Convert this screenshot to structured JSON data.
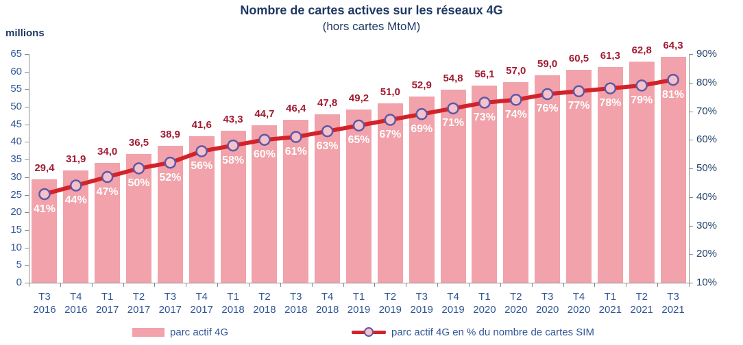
{
  "header": {
    "title": "Nombre de cartes actives sur les réseaux 4G",
    "subtitle": "(hors cartes MtoM)",
    "unit_label": "millions"
  },
  "legend": {
    "bar_label": "parc actif 4G",
    "line_label": "parc actif 4G en % du nombre de cartes SIM"
  },
  "colors": {
    "title": "#1F3864",
    "axis_text": "#2F5597",
    "bar_fill": "#F1A2AA",
    "bar_value_text": "#A11C33",
    "line": "#D2232A",
    "marker_fill": "#F3C2CB",
    "marker_stroke": "#6057A6",
    "pct_text": "#FFFFFF",
    "axis_line": "#8a8a8a"
  },
  "chart_data": {
    "type": "combo",
    "title": "Nombre de cartes actives sur les réseaux 4G",
    "subtitle": "(hors cartes MtoM)",
    "xlabel": "",
    "ylabel_left": "millions",
    "ylabel_right": "",
    "grid": false,
    "legend_position": "bottom",
    "categories": [
      [
        "T3",
        "2016"
      ],
      [
        "T4",
        "2016"
      ],
      [
        "T1",
        "2017"
      ],
      [
        "T2",
        "2017"
      ],
      [
        "T3",
        "2017"
      ],
      [
        "T4",
        "2017"
      ],
      [
        "T1",
        "2018"
      ],
      [
        "T2",
        "2018"
      ],
      [
        "T3",
        "2018"
      ],
      [
        "T4",
        "2018"
      ],
      [
        "T1",
        "2019"
      ],
      [
        "T2",
        "2019"
      ],
      [
        "T3",
        "2019"
      ],
      [
        "T4",
        "2019"
      ],
      [
        "T1",
        "2020"
      ],
      [
        "T2",
        "2020"
      ],
      [
        "T3",
        "2020"
      ],
      [
        "T4",
        "2020"
      ],
      [
        "T1",
        "2021"
      ],
      [
        "T2",
        "2021"
      ],
      [
        "T3",
        "2021"
      ]
    ],
    "series": [
      {
        "name": "parc actif 4G",
        "type": "bar",
        "axis": "left",
        "values": [
          29.4,
          31.9,
          34.0,
          36.5,
          38.9,
          41.6,
          43.3,
          44.7,
          46.4,
          47.8,
          49.2,
          51.0,
          52.9,
          54.8,
          56.1,
          57.0,
          59.0,
          60.5,
          61.3,
          62.8,
          64.3
        ],
        "labels": [
          "29,4",
          "31,9",
          "34,0",
          "36,5",
          "38,9",
          "41,6",
          "43,3",
          "44,7",
          "46,4",
          "47,8",
          "49,2",
          "51,0",
          "52,9",
          "54,8",
          "56,1",
          "57,0",
          "59,0",
          "60,5",
          "61,3",
          "62,8",
          "64,3"
        ]
      },
      {
        "name": "parc actif 4G en % du nombre de cartes SIM",
        "type": "line",
        "axis": "right",
        "values": [
          41,
          44,
          47,
          50,
          52,
          56,
          58,
          60,
          61,
          63,
          65,
          67,
          69,
          71,
          73,
          74,
          76,
          77,
          78,
          79,
          81
        ],
        "labels": [
          "41%",
          "44%",
          "47%",
          "50%",
          "52%",
          "56%",
          "58%",
          "60%",
          "61%",
          "63%",
          "65%",
          "67%",
          "69%",
          "71%",
          "73%",
          "74%",
          "76%",
          "77%",
          "78%",
          "79%",
          "81%"
        ]
      }
    ],
    "axes": {
      "left": {
        "min": 0,
        "max": 65,
        "step": 5,
        "tick_labels": [
          "0",
          "5",
          "10",
          "15",
          "20",
          "25",
          "30",
          "35",
          "40",
          "45",
          "50",
          "55",
          "60",
          "65"
        ]
      },
      "right": {
        "min": 10,
        "max": 90,
        "step": 10,
        "tick_labels": [
          "10%",
          "20%",
          "30%",
          "40%",
          "50%",
          "60%",
          "70%",
          "80%",
          "90%"
        ]
      }
    }
  }
}
